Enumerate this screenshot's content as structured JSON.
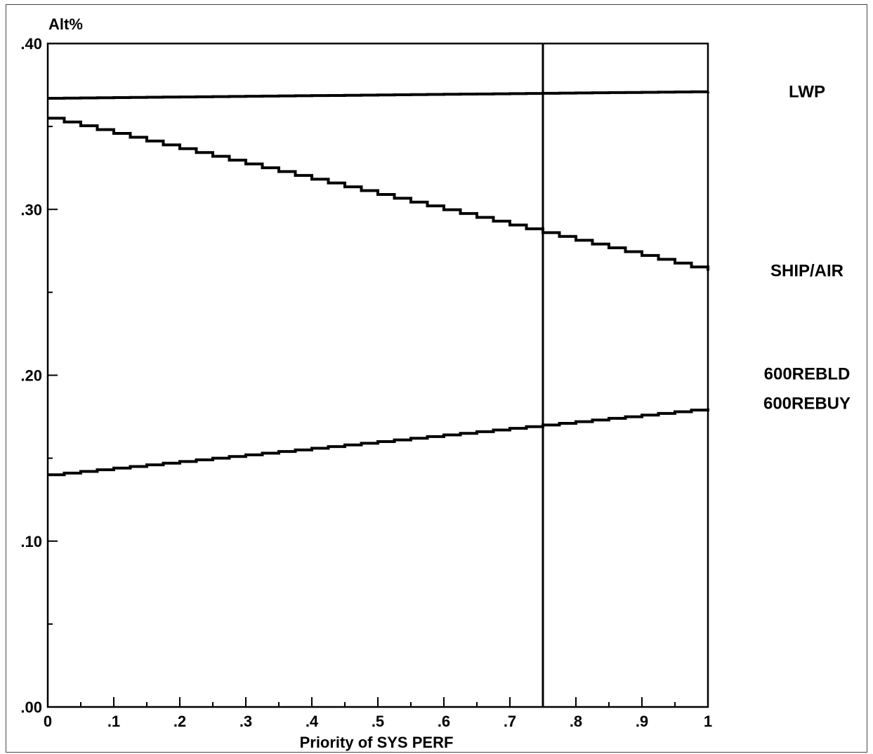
{
  "chart_data": {
    "type": "line",
    "ylabel": "Alt%",
    "xlabel": "Priority of SYS PERF",
    "xlim": [
      0,
      1
    ],
    "ylim": [
      0,
      0.4
    ],
    "x_ticks": [
      "0",
      ".1",
      ".2",
      ".3",
      ".4",
      ".5",
      ".6",
      ".7",
      ".8",
      ".9",
      "1"
    ],
    "y_ticks": [
      ".00",
      ".10",
      ".20",
      ".30",
      ".40"
    ],
    "reference_x": 0.75,
    "series": [
      {
        "name": "LWP",
        "x": [
          0,
          1
        ],
        "y": [
          0.367,
          0.371
        ]
      },
      {
        "name": "SHIP/AIR",
        "x": [
          0,
          1
        ],
        "y": [
          0.355,
          0.263
        ]
      },
      {
        "name": "600REBLD",
        "x": [
          0,
          1
        ],
        "y": [
          0.14,
          0.18
        ]
      }
    ],
    "extra_labels": [
      "600REBUY"
    ]
  }
}
